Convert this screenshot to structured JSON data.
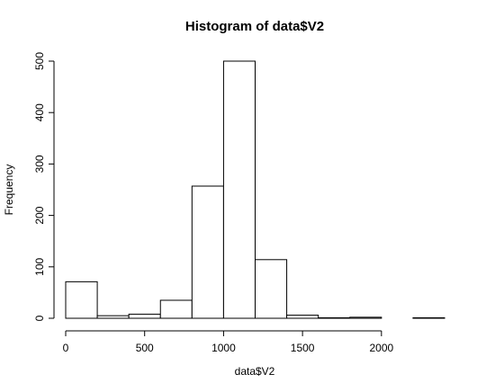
{
  "chart_data": {
    "type": "bar",
    "subtype": "histogram",
    "title": "Histogram of data$V2",
    "xlabel": "data$V2",
    "ylabel": "Frequency",
    "bin_width": 200,
    "bins": [
      {
        "start": 0,
        "end": 200,
        "count": 71
      },
      {
        "start": 200,
        "end": 400,
        "count": 5
      },
      {
        "start": 400,
        "end": 600,
        "count": 8
      },
      {
        "start": 600,
        "end": 800,
        "count": 35
      },
      {
        "start": 800,
        "end": 1000,
        "count": 257
      },
      {
        "start": 1000,
        "end": 1200,
        "count": 500
      },
      {
        "start": 1200,
        "end": 1400,
        "count": 114
      },
      {
        "start": 1400,
        "end": 1600,
        "count": 6
      },
      {
        "start": 1600,
        "end": 1800,
        "count": 1
      },
      {
        "start": 1800,
        "end": 2000,
        "count": 2
      },
      {
        "start": 2000,
        "end": 2200,
        "count": 0
      },
      {
        "start": 2200,
        "end": 2400,
        "count": 1
      }
    ],
    "x_ticks": [
      0,
      500,
      1000,
      1500,
      2000
    ],
    "y_ticks": [
      0,
      100,
      200,
      300,
      400,
      500
    ],
    "xlim": [
      0,
      2400
    ],
    "ylim": [
      0,
      500
    ],
    "grid": false,
    "legend": "none",
    "colors": {
      "bar_fill": "#ffffff",
      "bar_stroke": "#000000"
    }
  }
}
